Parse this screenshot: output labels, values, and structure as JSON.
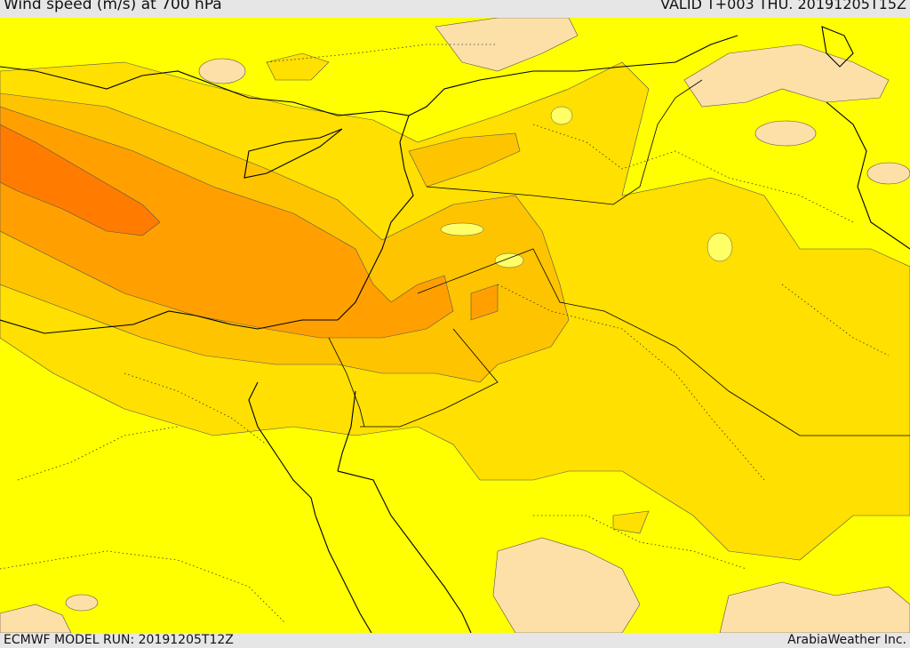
{
  "header": {
    "title": "Wind speed (m/s) at 700 hPa",
    "valid": "VALID T+003 THU. 20191205T15Z"
  },
  "footer": {
    "model_run": "ECMWF MODEL RUN: 20191205T12Z",
    "credit": "ArabiaWeather Inc."
  },
  "colors": {
    "level_1": "#ffffa0",
    "level_0": "#fde0a8",
    "level_2": "#ffff00",
    "level_3": "#ffe000",
    "level_4": "#ffc400",
    "level_5": "#ffa000",
    "level_6": "#ff7c00"
  }
}
